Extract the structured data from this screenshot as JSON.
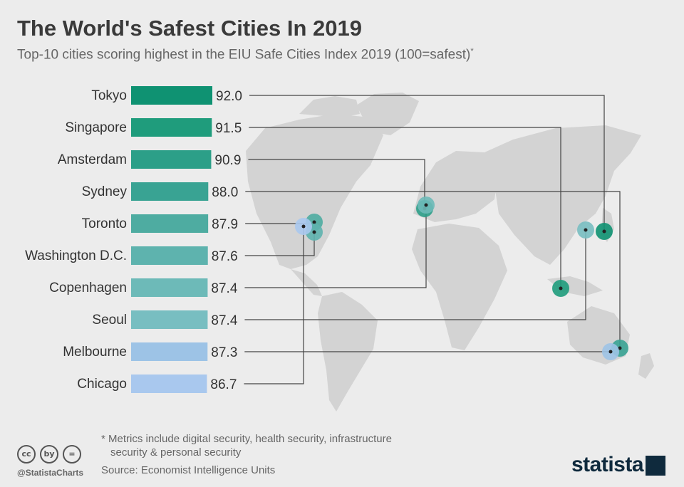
{
  "header": {
    "title": "The World's Safest Cities In 2019",
    "subtitle": "Top-10 cities scoring highest in the EIU Safe Cities Index 2019 (100=safest)",
    "subtitle_mark": "*"
  },
  "chart_data": {
    "type": "bar",
    "orientation": "horizontal",
    "title": "The World's Safest Cities In 2019",
    "subtitle": "Top-10 cities scoring highest in the EIU Safe Cities Index 2019 (100=safest)",
    "categories": [
      "Tokyo",
      "Singapore",
      "Amsterdam",
      "Sydney",
      "Toronto",
      "Washington D.C.",
      "Copenhagen",
      "Seoul",
      "Melbourne",
      "Chicago"
    ],
    "values": [
      92.0,
      91.5,
      90.9,
      88.0,
      87.9,
      87.6,
      87.4,
      87.4,
      87.3,
      86.7
    ],
    "value_labels": [
      "92.0",
      "91.5",
      "90.9",
      "88.0",
      "87.9",
      "87.6",
      "87.4",
      "87.4",
      "87.3",
      "86.7"
    ],
    "bar_colors": [
      "#0f9272",
      "#1f9c7c",
      "#2c9f88",
      "#39a393",
      "#4eaca1",
      "#5eb3ae",
      "#6dbab8",
      "#78bec1",
      "#9dc3e6",
      "#a9c8ee"
    ],
    "map_background": "#d3d3d3",
    "connector_color": "#444444"
  },
  "footer": {
    "footnote_line1": "* Metrics include digital security, health security, infrastructure",
    "footnote_line2": "security & personal security",
    "source": "Source: Economist Intelligence Units",
    "handle": "@StatistaCharts",
    "brand": "statista",
    "cc_icons": [
      "cc",
      "by",
      "="
    ]
  }
}
